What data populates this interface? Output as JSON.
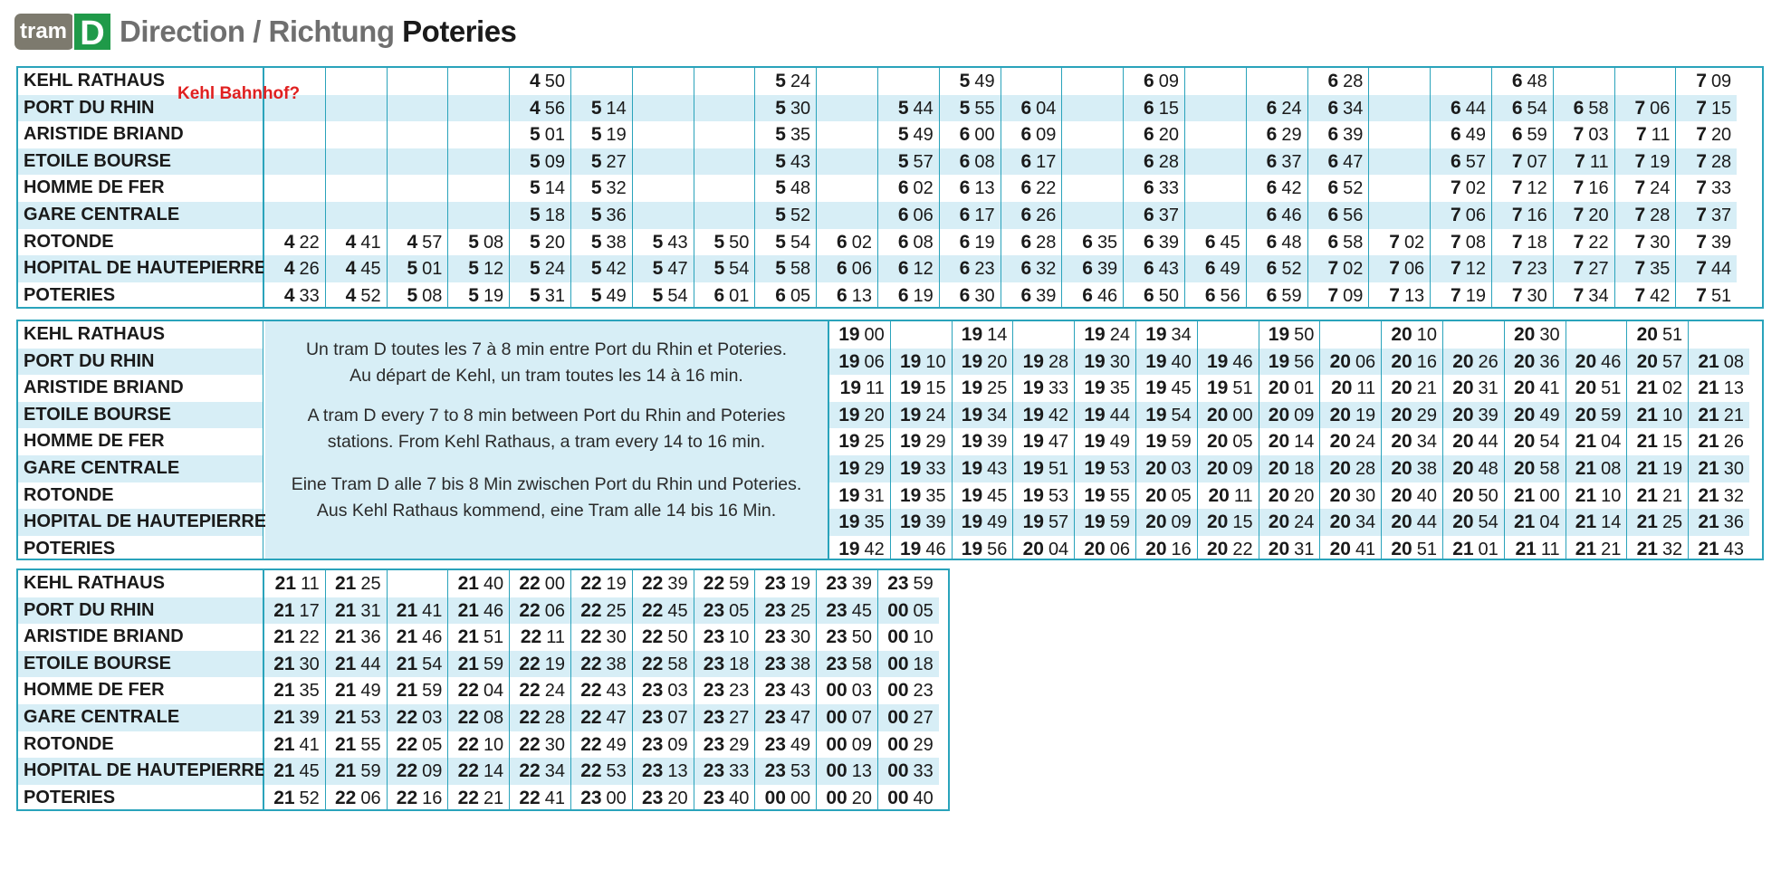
{
  "header": {
    "tram_label": "tram",
    "line_label": "D",
    "direction_label": "Direction / Richtung",
    "destination": "Poteries"
  },
  "annotation": "Kehl Bahnhof?",
  "stations": [
    "KEHL RATHAUS",
    "PORT DU RHIN",
    "ARISTIDE BRIAND",
    "ETOILE BOURSE",
    "HOMME DE FER",
    "GARE CENTRALE",
    "ROTONDE",
    "HOPITAL DE HAUTEPIERRE",
    "POTERIES"
  ],
  "block1": {
    "trips": [
      [
        "",
        "",
        "",
        "",
        "",
        "",
        "4 22",
        "4 26",
        "4 33"
      ],
      [
        "",
        "",
        "",
        "",
        "",
        "",
        "4 41",
        "4 45",
        "4 52"
      ],
      [
        "",
        "",
        "",
        "",
        "",
        "",
        "4 57",
        "5 01",
        "5 08"
      ],
      [
        "",
        "",
        "",
        "",
        "",
        "",
        "5 08",
        "5 12",
        "5 19"
      ],
      [
        "4 50",
        "4 56",
        "5 01",
        "5 09",
        "5 14",
        "5 18",
        "5 20",
        "5 24",
        "5 31"
      ],
      [
        "",
        "5 14",
        "5 19",
        "5 27",
        "5 32",
        "5 36",
        "5 38",
        "5 42",
        "5 49"
      ],
      [
        "",
        "",
        "",
        "",
        "",
        "",
        "5 43",
        "5 47",
        "5 54"
      ],
      [
        "",
        "",
        "",
        "",
        "",
        "",
        "5 50",
        "5 54",
        "6 01"
      ],
      [
        "5 24",
        "5 30",
        "5 35",
        "5 43",
        "5 48",
        "5 52",
        "5 54",
        "5 58",
        "6 05"
      ],
      [
        "",
        "",
        "",
        "",
        "",
        "",
        "6 02",
        "6 06",
        "6 13"
      ],
      [
        "",
        "5 44",
        "5 49",
        "5 57",
        "6 02",
        "6 06",
        "6 08",
        "6 12",
        "6 19"
      ],
      [
        "5 49",
        "5 55",
        "6 00",
        "6 08",
        "6 13",
        "6 17",
        "6 19",
        "6 23",
        "6 30"
      ],
      [
        "",
        "6 04",
        "6 09",
        "6 17",
        "6 22",
        "6 26",
        "6 28",
        "6 32",
        "6 39"
      ],
      [
        "",
        "",
        "",
        "",
        "",
        "",
        "6 35",
        "6 39",
        "6 46"
      ],
      [
        "6 09",
        "6 15",
        "6 20",
        "6 28",
        "6 33",
        "6 37",
        "6 39",
        "6 43",
        "6 50"
      ],
      [
        "",
        "",
        "",
        "",
        "",
        "",
        "6 45",
        "6 49",
        "6 56"
      ],
      [
        "",
        "6 24",
        "6 29",
        "6 37",
        "6 42",
        "6 46",
        "6 48",
        "6 52",
        "6 59"
      ],
      [
        "6 28",
        "6 34",
        "6 39",
        "6 47",
        "6 52",
        "6 56",
        "6 58",
        "7 02",
        "7 09"
      ],
      [
        "",
        "",
        "",
        "",
        "",
        "",
        "7 02",
        "7 06",
        "7 13"
      ],
      [
        "",
        "6 44",
        "6 49",
        "6 57",
        "7 02",
        "7 06",
        "7 08",
        "7 12",
        "7 19"
      ],
      [
        "6 48",
        "6 54",
        "6 59",
        "7 07",
        "7 12",
        "7 16",
        "7 18",
        "7 23",
        "7 30"
      ],
      [
        "",
        "6 58",
        "7 03",
        "7 11",
        "7 16",
        "7 20",
        "7 22",
        "7 27",
        "7 34"
      ],
      [
        "",
        "7 06",
        "7 11",
        "7 19",
        "7 24",
        "7 28",
        "7 30",
        "7 35",
        "7 42"
      ],
      [
        "7 09",
        "7 15",
        "7 20",
        "7 28",
        "7 33",
        "7 37",
        "7 39",
        "7 44",
        "7 51"
      ]
    ]
  },
  "block2": {
    "info_fr": [
      "Un tram D toutes les 7 à 8 min entre Port du Rhin et Poteries.",
      "Au départ de Kehl, un tram toutes les 14 à 16 min."
    ],
    "info_en": [
      "A tram D every 7 to 8 min between Port du Rhin and Poteries",
      "stations. From Kehl Rathaus, a tram every 14 to 16 min."
    ],
    "info_de": [
      "Eine Tram D alle 7 bis 8 Min zwischen Port du Rhin und Poteries.",
      "Aus Kehl Rathaus kommend, eine Tram alle 14 bis 16 Min."
    ],
    "trips": [
      [
        "19 00",
        "19 06",
        "19 11",
        "19 20",
        "19 25",
        "19 29",
        "19 31",
        "19 35",
        "19 42"
      ],
      [
        "",
        "19 10",
        "19 15",
        "19 24",
        "19 29",
        "19 33",
        "19 35",
        "19 39",
        "19 46"
      ],
      [
        "19 14",
        "19 20",
        "19 25",
        "19 34",
        "19 39",
        "19 43",
        "19 45",
        "19 49",
        "19 56"
      ],
      [
        "",
        "19 28",
        "19 33",
        "19 42",
        "19 47",
        "19 51",
        "19 53",
        "19 57",
        "20 04"
      ],
      [
        "19 24",
        "19 30",
        "19 35",
        "19 44",
        "19 49",
        "19 53",
        "19 55",
        "19 59",
        "20 06"
      ],
      [
        "19 34",
        "19 40",
        "19 45",
        "19 54",
        "19 59",
        "20 03",
        "20 05",
        "20 09",
        "20 16"
      ],
      [
        "",
        "19 46",
        "19 51",
        "20 00",
        "20 05",
        "20 09",
        "20 11",
        "20 15",
        "20 22"
      ],
      [
        "19 50",
        "19 56",
        "20 01",
        "20 09",
        "20 14",
        "20 18",
        "20 20",
        "20 24",
        "20 31"
      ],
      [
        "",
        "20 06",
        "20 11",
        "20 19",
        "20 24",
        "20 28",
        "20 30",
        "20 34",
        "20 41"
      ],
      [
        "20 10",
        "20 16",
        "20 21",
        "20 29",
        "20 34",
        "20 38",
        "20 40",
        "20 44",
        "20 51"
      ],
      [
        "",
        "20 26",
        "20 31",
        "20 39",
        "20 44",
        "20 48",
        "20 50",
        "20 54",
        "21 01"
      ],
      [
        "20 30",
        "20 36",
        "20 41",
        "20 49",
        "20 54",
        "20 58",
        "21 00",
        "21 04",
        "21 11"
      ],
      [
        "",
        "20 46",
        "20 51",
        "20 59",
        "21 04",
        "21 08",
        "21 10",
        "21 14",
        "21 21"
      ],
      [
        "20 51",
        "20 57",
        "21 02",
        "21 10",
        "21 15",
        "21 19",
        "21 21",
        "21 25",
        "21 32"
      ],
      [
        "",
        "21 08",
        "21 13",
        "21 21",
        "21 26",
        "21 30",
        "21 32",
        "21 36",
        "21 43"
      ]
    ]
  },
  "block3": {
    "trips": [
      [
        "21 11",
        "21 17",
        "21 22",
        "21 30",
        "21 35",
        "21 39",
        "21 41",
        "21 45",
        "21 52"
      ],
      [
        "21 25",
        "21 31",
        "21 36",
        "21 44",
        "21 49",
        "21 53",
        "21 55",
        "21 59",
        "22 06"
      ],
      [
        "",
        "21 41",
        "21 46",
        "21 54",
        "21 59",
        "22 03",
        "22 05",
        "22 09",
        "22 16"
      ],
      [
        "21 40",
        "21 46",
        "21 51",
        "21 59",
        "22 04",
        "22 08",
        "22 10",
        "22 14",
        "22 21"
      ],
      [
        "22 00",
        "22 06",
        "22 11",
        "22 19",
        "22 24",
        "22 28",
        "22 30",
        "22 34",
        "22 41"
      ],
      [
        "22 19",
        "22 25",
        "22 30",
        "22 38",
        "22 43",
        "22 47",
        "22 49",
        "22 53",
        "23 00"
      ],
      [
        "22 39",
        "22 45",
        "22 50",
        "22 58",
        "23 03",
        "23 07",
        "23 09",
        "23 13",
        "23 20"
      ],
      [
        "22 59",
        "23 05",
        "23 10",
        "23 18",
        "23 23",
        "23 27",
        "23 29",
        "23 33",
        "23 40"
      ],
      [
        "23 19",
        "23 25",
        "23 30",
        "23 38",
        "23 43",
        "23 47",
        "23 49",
        "23 53",
        "00 00"
      ],
      [
        "23 39",
        "23 45",
        "23 50",
        "23 58",
        "00 03",
        "00 07",
        "00 09",
        "00 13",
        "00 20"
      ],
      [
        "23 59",
        "00 05",
        "00 10",
        "00 18",
        "00 23",
        "00 27",
        "00 29",
        "00 33",
        "00 40"
      ]
    ]
  }
}
